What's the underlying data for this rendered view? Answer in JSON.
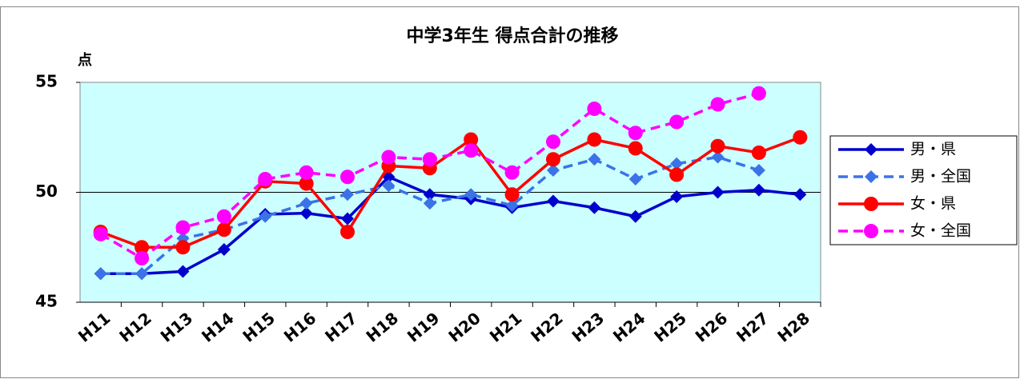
{
  "chart_data": {
    "type": "line",
    "title": "中学3年生 得点合計の推移",
    "y_label": "点",
    "categories": [
      "H11",
      "H12",
      "H13",
      "H14",
      "H15",
      "H16",
      "H17",
      "H18",
      "H19",
      "H20",
      "H21",
      "H22",
      "H23",
      "H24",
      "H25",
      "H26",
      "H27",
      "H28"
    ],
    "ylim": [
      45,
      55
    ],
    "yticks": [
      45,
      50,
      55
    ],
    "reference_line": 50,
    "plot_background": "#ccffff",
    "series": [
      {
        "name": "男・県",
        "color": "#0000cc",
        "dashed": false,
        "marker": "diamond",
        "values": [
          46.3,
          46.3,
          46.4,
          47.4,
          49.0,
          49.05,
          48.8,
          50.7,
          49.9,
          49.7,
          49.3,
          49.6,
          49.3,
          48.9,
          49.8,
          50.0,
          50.1,
          49.9
        ]
      },
      {
        "name": "男・全国",
        "color": "#3b73e6",
        "dashed": true,
        "marker": "diamond",
        "values": [
          46.3,
          46.3,
          47.9,
          48.3,
          48.9,
          49.5,
          49.9,
          50.3,
          49.5,
          49.9,
          49.4,
          51.0,
          51.5,
          50.6,
          51.3,
          51.6,
          51.0,
          null
        ]
      },
      {
        "name": "女・県",
        "color": "#ff0000",
        "dashed": false,
        "marker": "circle",
        "values": [
          48.2,
          47.5,
          47.5,
          48.3,
          50.5,
          50.4,
          48.2,
          51.2,
          51.1,
          52.4,
          49.9,
          51.5,
          52.4,
          52.0,
          50.8,
          52.1,
          51.8,
          52.5
        ]
      },
      {
        "name": "女・全国",
        "color": "#ff00ff",
        "dashed": true,
        "marker": "circle",
        "values": [
          48.1,
          47.0,
          48.4,
          48.9,
          50.6,
          50.9,
          50.7,
          51.6,
          51.5,
          51.9,
          50.9,
          52.3,
          53.8,
          52.7,
          53.2,
          54.0,
          54.5,
          null
        ]
      }
    ]
  }
}
